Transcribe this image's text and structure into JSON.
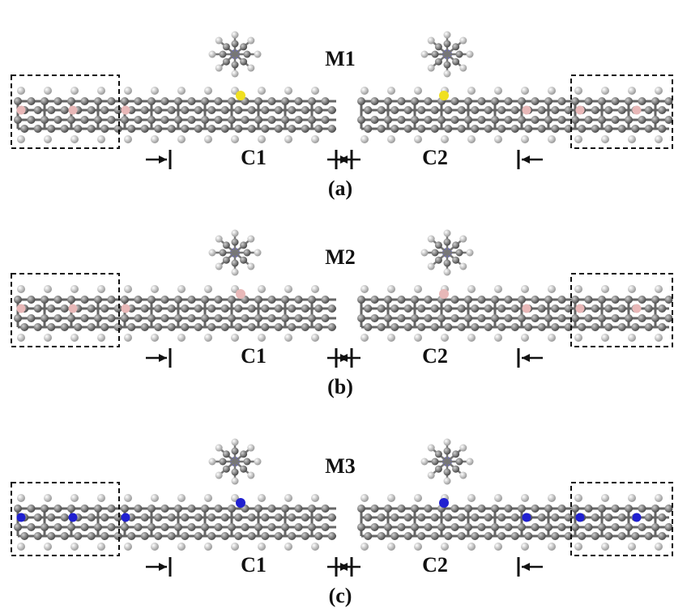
{
  "panels": [
    {
      "molecule": "M1",
      "c1": "C1",
      "c2": "C2",
      "label": "(a)"
    },
    {
      "molecule": "M2",
      "c1": "C1",
      "c2": "C2",
      "label": "(b)"
    },
    {
      "molecule": "M3",
      "c1": "C1",
      "c2": "C2",
      "label": "(c)"
    }
  ]
}
